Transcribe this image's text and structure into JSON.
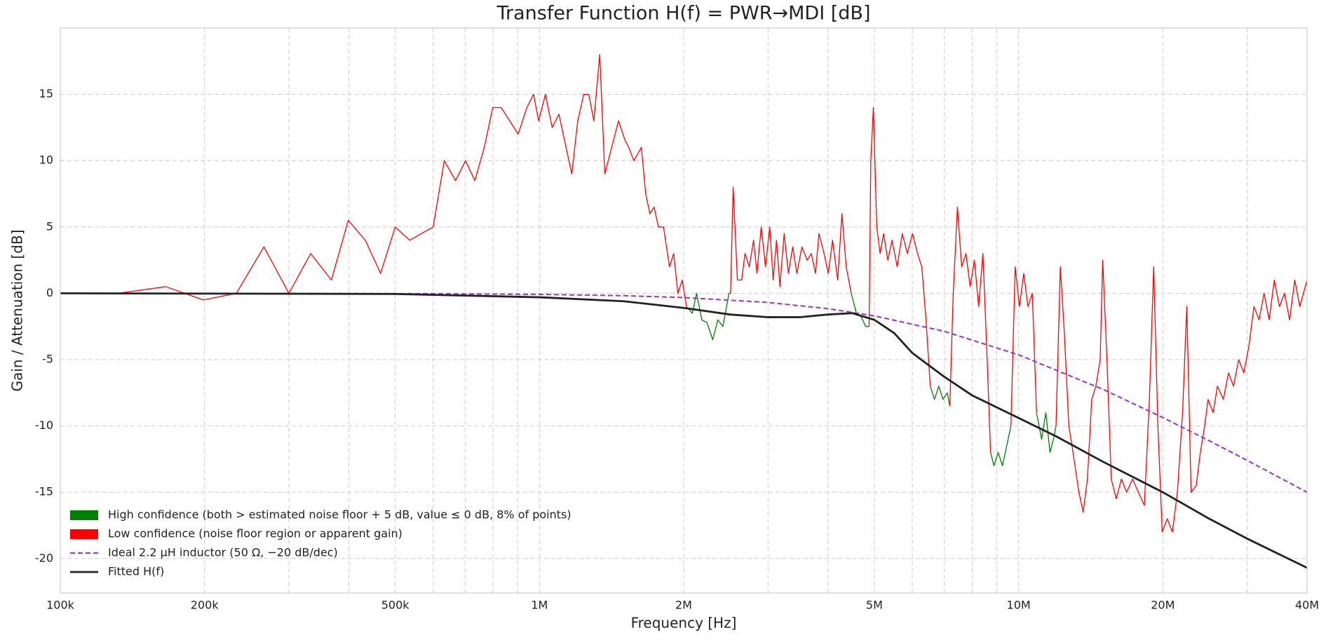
{
  "chart_data": {
    "type": "line",
    "title": "Transfer Function H(f) = PWR→MDI [dB]",
    "xlabel": "Frequency [Hz]",
    "ylabel": "Gain / Attenuation [dB]",
    "xscale": "log",
    "grid": true,
    "legend": "lower left",
    "xlim": [
      100000,
      40000000
    ],
    "ylim": [
      -22.6,
      20
    ],
    "xticks": [
      {
        "value": 100000,
        "label": "100k"
      },
      {
        "value": 200000,
        "label": "200k"
      },
      {
        "value": 500000,
        "label": "500k"
      },
      {
        "value": 1000000,
        "label": "1M"
      },
      {
        "value": 2000000,
        "label": "2M"
      },
      {
        "value": 5000000,
        "label": "5M"
      },
      {
        "value": 10000000,
        "label": "10M"
      },
      {
        "value": 20000000,
        "label": "20M"
      },
      {
        "value": 40000000,
        "label": "40M"
      }
    ],
    "xminorticks": [
      300000,
      400000,
      600000,
      700000,
      800000,
      900000,
      3000000,
      4000000,
      6000000,
      7000000,
      8000000,
      9000000,
      30000000
    ],
    "yticks": [
      -20,
      -15,
      -10,
      -5,
      0,
      5,
      10,
      15
    ],
    "series": [
      {
        "name": "High confidence (both > estimated noise floor + 5 dB, value ≤ 0 dB, 8% of points)",
        "color": "#008000",
        "legend_marker": "patch",
        "linewidth": 1.3,
        "x": [
          2027000,
          2085000,
          2128000,
          2182000,
          2236000,
          2300000,
          2357000,
          2415000,
          2486000,
          null,
          4475000,
          4585000,
          4699000,
          4796000,
          4875000,
          null,
          6541000,
          6676000,
          6813000,
          6954000,
          7098000,
          7185000,
          null,
          8740000,
          8883000,
          9066000,
          9253000,
          9445000,
          9638000,
          null,
          10900000,
          11170000,
          11400000,
          11630000,
          11820000,
          11970000
        ],
        "values": [
          -1,
          -1.5,
          0,
          -2,
          -2.2,
          -3.5,
          -2,
          -2.5,
          0,
          null,
          0,
          -1.5,
          -1.8,
          -2.5,
          -2.5,
          null,
          -7,
          -8,
          -7,
          -8,
          -7.5,
          -8.5,
          null,
          -12,
          -13,
          -12,
          -13,
          -11.5,
          -10,
          null,
          -9,
          -11,
          -9,
          -12,
          -11,
          -10
        ]
      },
      {
        "name": "Low confidence (noise floor region or apparent gain)",
        "color": "#ff0000",
        "legend_marker": "patch",
        "linewidth": 1.3,
        "x": [
          100000,
          132000,
          166000,
          199000,
          233000,
          266000,
          300000,
          333000,
          368000,
          399000,
          433000,
          466000,
          500000,
          536000,
          600000,
          633000,
          668000,
          701000,
          733000,
          767000,
          799000,
          832000,
          903000,
          941000,
          972000,
          996000,
          1029000,
          1063000,
          1098000,
          1168000,
          1202000,
          1237000,
          1267000,
          1299000,
          1336000,
          1369000,
          1462000,
          1510000,
          1536000,
          1574000,
          1632000,
          1666000,
          1700000,
          1735000,
          1771000,
          1815000,
          1868000,
          1906000,
          1945000,
          1986000,
          2027000,
          null,
          2486000,
          2505000,
          2537000,
          2589000,
          2642000,
          2686000,
          2741000,
          2798000,
          2844000,
          2903000,
          2963000,
          3024000,
          3074000,
          3124000,
          3176000,
          3241000,
          3308000,
          3377000,
          3445000,
          3531000,
          3619000,
          3693000,
          3769000,
          3831000,
          3926000,
          4007000,
          4090000,
          4192000,
          4278000,
          4367000,
          4475000,
          null,
          4875000,
          4915000,
          4976000,
          5058000,
          5140000,
          5227000,
          5334000,
          5444000,
          5579000,
          5718000,
          5859000,
          6005000,
          6152000,
          6280000,
          6409000,
          6541000,
          null,
          7185000,
          7304000,
          7453000,
          7607000,
          7764000,
          7924000,
          8087000,
          8254000,
          8424000,
          8598000,
          8740000,
          null,
          9638000,
          9837000,
          10040000,
          10250000,
          10460000,
          10680000,
          10900000,
          null,
          11970000,
          12220000,
          12460000,
          12730000,
          12990000,
          13360000,
          13640000,
          13920000,
          14210000,
          14500000,
          14800000,
          14980000,
          15290000,
          15610000,
          15990000,
          16390000,
          16800000,
          17290000,
          17780000,
          18300000,
          18750000,
          19140000,
          19530000,
          19940000,
          20430000,
          20940000,
          21450000,
          21990000,
          22440000,
          22910000,
          23480000,
          23950000,
          24450000,
          24850000,
          25470000,
          26000000,
          26750000,
          27420000,
          28090000,
          28790000,
          29510000,
          30240000,
          30990000,
          31760000,
          32530000,
          33340000,
          34170000,
          35030000,
          35890000,
          36780000,
          37700000,
          38630000,
          40000000
        ],
        "values": [
          0,
          0,
          0.5,
          -0.5,
          0,
          3.5,
          0,
          3,
          1,
          5.5,
          4,
          1.5,
          5,
          4,
          5,
          10,
          8.5,
          10,
          8.5,
          11,
          14,
          14,
          12,
          14,
          15,
          13,
          15,
          12.5,
          13.5,
          9,
          13,
          15,
          15,
          13,
          18,
          9,
          13,
          11.5,
          11,
          10,
          11,
          7.5,
          6,
          6.5,
          5,
          5,
          2,
          3,
          0,
          1,
          -1,
          null,
          0,
          0,
          8,
          1,
          1,
          3,
          2,
          4,
          1.5,
          5,
          2,
          5,
          1,
          4,
          0.5,
          4.5,
          1.5,
          3.5,
          1.5,
          3.5,
          2.5,
          3,
          1.5,
          4.5,
          3,
          1.5,
          4,
          1,
          6,
          2,
          0,
          null,
          -2.5,
          10,
          14,
          5,
          3,
          4.5,
          2.5,
          4,
          2,
          4.5,
          3,
          4.5,
          3,
          2,
          -2,
          -7,
          null,
          -8.5,
          0,
          6.5,
          2,
          3,
          0.5,
          2.5,
          -1,
          3,
          -5,
          -12,
          null,
          -10,
          2,
          -1,
          1.5,
          -1,
          0,
          -9,
          null,
          -10,
          2,
          -3,
          -10,
          -12,
          -15,
          -16.5,
          -14,
          -8,
          -7,
          -5,
          2.5,
          -5,
          -14,
          -15.5,
          -14,
          -15,
          -14,
          -15,
          -16,
          -8,
          2,
          -10,
          -18,
          -17,
          -18,
          -15,
          -9,
          -1,
          -15,
          -14.5,
          -12,
          -10,
          -8,
          -9,
          -7,
          -8,
          -6,
          -7,
          -5,
          -6,
          -4,
          -1,
          -2,
          0,
          -2,
          1,
          -1,
          0,
          -2,
          1,
          -1,
          1
        ]
      },
      {
        "name": "Ideal 2.2 μH inductor (50 Ω, −20 dB/dec)",
        "color": "#9932cc",
        "legend_marker": "line",
        "dash": true,
        "linewidth": 2,
        "x": [
          100000,
          500000,
          1000000,
          1500000,
          2000000,
          3000000,
          4000000,
          5000000,
          7000000,
          10000000,
          15000000,
          20000000,
          25000000,
          30000000,
          40000000
        ],
        "values": [
          0,
          -0.02,
          -0.08,
          -0.18,
          -0.32,
          -0.69,
          -1.16,
          -1.7,
          -2.87,
          -4.64,
          -7.24,
          -9.37,
          -11.12,
          -12.6,
          -15
        ]
      },
      {
        "name": "Fitted H(f)",
        "color": "#222222",
        "legend_marker": "line",
        "linewidth": 2.8,
        "x": [
          100000,
          500000,
          1000000,
          1500000,
          2000000,
          2500000,
          3000000,
          3500000,
          4000000,
          4500000,
          5000000,
          5500000,
          6000000,
          7000000,
          8000000,
          10000000,
          12000000,
          15000000,
          20000000,
          25000000,
          30000000,
          40000000
        ],
        "values": [
          0,
          -0.05,
          -0.3,
          -0.6,
          -1.1,
          -1.6,
          -1.8,
          -1.8,
          -1.6,
          -1.5,
          -2,
          -3,
          -4.5,
          -6.3,
          -7.7,
          -9.4,
          -10.8,
          -12.7,
          -15,
          -17,
          -18.5,
          -20.7
        ]
      }
    ]
  }
}
